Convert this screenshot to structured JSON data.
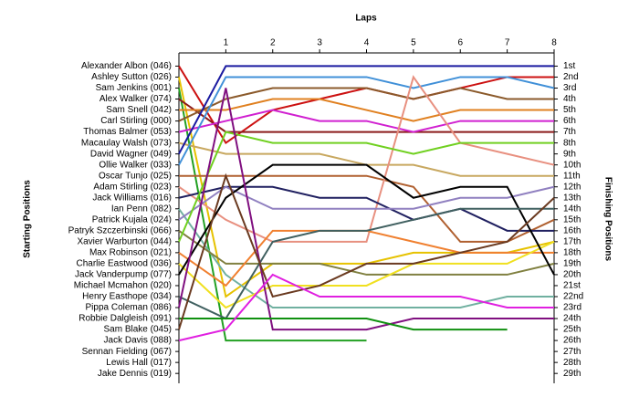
{
  "chart_data": {
    "type": "lap",
    "title": "Laps",
    "y_label_left": "Starting Positions",
    "y_label_right": "Finishing Positions",
    "x": [
      0,
      1,
      2,
      3,
      4,
      5,
      6,
      7,
      8
    ],
    "xlim": [
      0,
      8
    ],
    "xticks": [
      1,
      2,
      3,
      4,
      5,
      6,
      7,
      8
    ],
    "ylim": [
      -0.2,
      29.9
    ],
    "y_inverted": true,
    "yticks": [
      1,
      2,
      3,
      4,
      5,
      6,
      7,
      8,
      9,
      10,
      11,
      12,
      13,
      14,
      15,
      16,
      17,
      18,
      19,
      20,
      21,
      22,
      23,
      24,
      25,
      26,
      27,
      28,
      29
    ],
    "categories": [
      "Alexander Albon (046)",
      "Ashley Sutton (026)",
      "Sam Jenkins (001)",
      "Alex Walker (074)",
      "Sam Snell (042)",
      "Carl Stirling (000)",
      "Thomas Balmer (053)",
      "Macaulay Walsh (073)",
      "David Wagner (049)",
      "Ollie Walker (033)",
      "Oscar Tunjo (025)",
      "Adam Stirling (023)",
      "Jack Williams (016)",
      "Ian Penn (082)",
      "Patrick Kujala (024)",
      "Patryk Szczerbinski (066)",
      "Xavier Warburton (044)",
      "Max Robinson (021)",
      "Charlie Eastwood (036)",
      "Jack Vanderpump (077)",
      "Michael Mcmahon (020)",
      "Henry Easthope (034)",
      "Pippa Coleman (086)",
      "Robbie Dalgleish (091)",
      "Sam Blake (045)",
      "Jack Davis (088)",
      "Sennan Fielding (067)",
      "Lewis Hall (017)",
      "Jake Dennis (019)"
    ],
    "finishing_labels": [
      "1st",
      "2nd",
      "3rd",
      "4th",
      "5th",
      "6th",
      "7th",
      "8th",
      "9th",
      "10th",
      "11th",
      "12th",
      "13th",
      "14th",
      "15th",
      "16th",
      "17th",
      "18th",
      "19th",
      "20th",
      "21st",
      "22nd",
      "23rd",
      "24th",
      "25th",
      "26th",
      "27th",
      "28th",
      "29th"
    ],
    "series": [
      {
        "name": "Alexander Albon (046)",
        "color": "#cc1111",
        "values": [
          1,
          8,
          5,
          4,
          3,
          4,
          3,
          2,
          2
        ]
      },
      {
        "name": "Ashley Sutton (026)",
        "color": "#e6c200",
        "values": [
          2,
          22,
          19,
          19,
          19,
          18,
          18,
          18,
          17
        ]
      },
      {
        "name": "Sam Jenkins (001)",
        "color": "#22a022",
        "values": [
          3,
          26,
          26,
          26,
          26,
          null,
          null,
          null,
          null
        ]
      },
      {
        "name": "Alex Walker (074)",
        "color": "#8b1a1a",
        "values": [
          4,
          7,
          7,
          7,
          7,
          7,
          7,
          7,
          7
        ]
      },
      {
        "name": "Sam Snell (042)",
        "color": "#e08020",
        "values": [
          5,
          5,
          4,
          4,
          5,
          6,
          5,
          5,
          5
        ]
      },
      {
        "name": "Carl Stirling (000)",
        "color": "#8b5a2b",
        "values": [
          6,
          4,
          3,
          3,
          3,
          4,
          3,
          4,
          4
        ]
      },
      {
        "name": "Thomas Balmer (053)",
        "color": "#d020d0",
        "values": [
          7,
          6,
          5,
          6,
          6,
          7,
          6,
          6,
          6
        ]
      },
      {
        "name": "Macaulay Walsh (073)",
        "color": "#c8a860",
        "values": [
          8,
          9,
          9,
          9,
          10,
          10,
          11,
          11,
          11
        ]
      },
      {
        "name": "David Wagner (049)",
        "color": "#1a1aa0",
        "values": [
          9,
          1,
          1,
          1,
          1,
          1,
          1,
          1,
          1
        ]
      },
      {
        "name": "Ollie Walker (033)",
        "color": "#4090d8",
        "values": [
          10,
          2,
          2,
          2,
          2,
          3,
          2,
          2,
          3
        ]
      },
      {
        "name": "Oscar Tunjo (025)",
        "color": "#b06030",
        "values": [
          11,
          11,
          11,
          11,
          11,
          12,
          17,
          17,
          15
        ]
      },
      {
        "name": "Adam Stirling (023)",
        "color": "#e89080",
        "values": [
          12,
          15,
          17,
          17,
          17,
          2,
          8,
          9,
          10
        ]
      },
      {
        "name": "Jack Williams (016)",
        "color": "#202060",
        "values": [
          13,
          12,
          12,
          13,
          13,
          15,
          14,
          16,
          16
        ]
      },
      {
        "name": "Ian Penn (082)",
        "color": "#70b0a0",
        "values": [
          14,
          20,
          23,
          23,
          23,
          23,
          23,
          22,
          22
        ]
      },
      {
        "name": "Patrick Kujala (024)",
        "color": "#9080c0",
        "values": [
          15,
          12,
          14,
          14,
          14,
          14,
          13,
          13,
          12
        ]
      },
      {
        "name": "Patryk Szczerbinski (066)",
        "color": "#808040",
        "values": [
          16,
          19,
          19,
          19,
          20,
          20,
          20,
          20,
          19
        ]
      },
      {
        "name": "Xavier Warburton (044)",
        "color": "#70d020",
        "values": [
          17,
          7,
          8,
          8,
          8,
          9,
          8,
          8,
          8
        ]
      },
      {
        "name": "Max Robinson (021)",
        "color": "#f08030",
        "values": [
          18,
          21,
          16,
          16,
          16,
          17,
          18,
          18,
          18
        ]
      },
      {
        "name": "Charlie Eastwood (036)",
        "color": "#f0e020",
        "values": [
          19,
          23,
          21,
          21,
          21,
          19,
          19,
          19,
          17
        ]
      },
      {
        "name": "Jack Vanderpump (077)",
        "color": "#000000",
        "values": [
          20,
          13,
          10,
          10,
          10,
          13,
          12,
          12,
          20
        ]
      },
      {
        "name": "Henry Easthope (034)",
        "color": "#406060",
        "values": [
          22,
          24,
          17,
          16,
          16,
          15,
          14,
          14,
          14
        ]
      },
      {
        "name": "Pippa Coleman (086)",
        "color": "#801080",
        "values": [
          23,
          3,
          25,
          25,
          25,
          24,
          24,
          24,
          24
        ]
      },
      {
        "name": "Robbie Dalgleish (091)",
        "color": "#109010",
        "values": [
          24,
          24,
          24,
          24,
          24,
          25,
          25,
          25,
          null
        ]
      },
      {
        "name": "Sam Blake (045)",
        "color": "#6a3a20",
        "values": [
          25,
          11,
          22,
          21,
          19,
          19,
          18,
          17,
          13
        ]
      },
      {
        "name": "Jack Davis (088)",
        "color": "#e020e0",
        "values": [
          26,
          25,
          20,
          22,
          22,
          22,
          22,
          23,
          23
        ]
      }
    ]
  }
}
